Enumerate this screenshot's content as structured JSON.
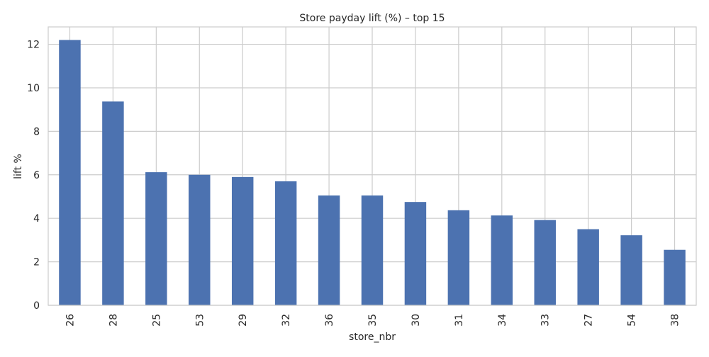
{
  "chart_data": {
    "type": "bar",
    "title": "Store payday lift (%) – top 15",
    "xlabel": "store_nbr",
    "ylabel": "lift %",
    "categories": [
      "26",
      "28",
      "25",
      "53",
      "29",
      "32",
      "36",
      "35",
      "30",
      "31",
      "34",
      "33",
      "27",
      "54",
      "38"
    ],
    "values": [
      12.2,
      9.37,
      6.12,
      6.0,
      5.9,
      5.7,
      5.05,
      5.05,
      4.75,
      4.37,
      4.13,
      3.92,
      3.5,
      3.22,
      2.55
    ],
    "ylim": [
      0,
      12.8
    ],
    "yticks": [
      0,
      2,
      4,
      6,
      8,
      10,
      12
    ],
    "grid": true,
    "bar_color": "#4c72b0",
    "grid_color": "#cccccc"
  }
}
